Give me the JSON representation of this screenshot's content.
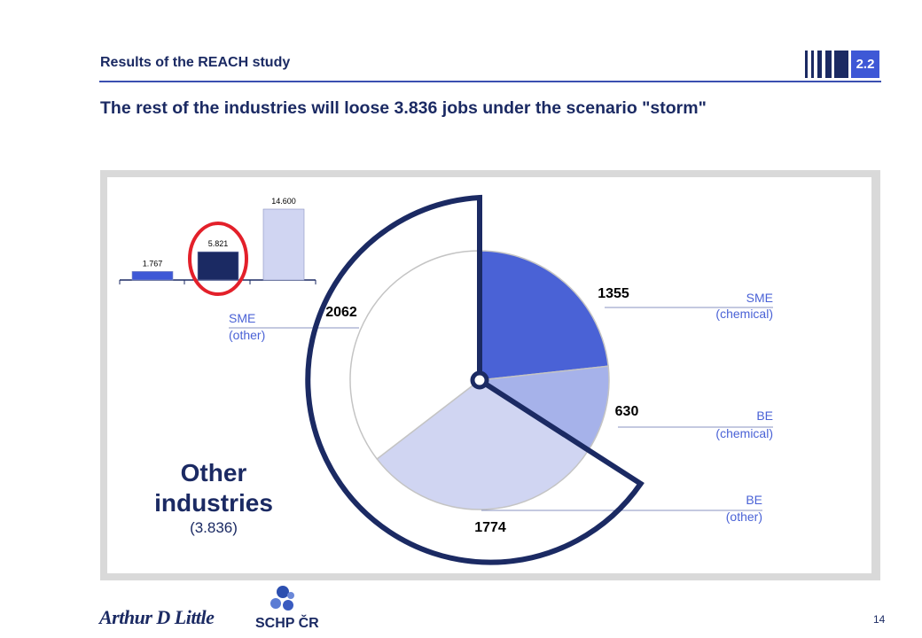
{
  "header": {
    "section_title": "Results of the REACH study",
    "section_number": "2.2",
    "main_title": "The rest of the industries will loose 3.836 jobs under the scenario \"storm\""
  },
  "chart_data": [
    {
      "type": "bar",
      "categories": [
        "",
        "",
        ""
      ],
      "values": [
        1767,
        5821,
        14600
      ],
      "value_labels": [
        "1.767",
        "5.821",
        "14.600"
      ],
      "highlighted_index": 1,
      "colors": [
        "#3e58d6",
        "#1b2a63",
        "#d0d5f2"
      ]
    },
    {
      "type": "pie",
      "slices": [
        {
          "label_line1": "SME",
          "label_line2": "(chemical)",
          "value": 1355,
          "value_label": "1355",
          "color": "#4a62d6"
        },
        {
          "label_line1": "BE",
          "label_line2": "(chemical)",
          "value": 630,
          "value_label": "630",
          "color": "#a6b2ea"
        },
        {
          "label_line1": "BE",
          "label_line2": "(other)",
          "value": 1774,
          "value_label": "1774",
          "color": "#d0d5f2"
        },
        {
          "label_line1": "SME",
          "label_line2": "(other)",
          "value": 2062,
          "value_label": "2062",
          "color": "#ffffff"
        }
      ],
      "callout": {
        "line1": "Other",
        "line2": "industries",
        "value": "(3.836)"
      }
    }
  ],
  "footer": {
    "logo_text": "Arthur D Little",
    "partner_logo_text": "SCHP ČR",
    "page_number": "14"
  },
  "colors": {
    "navy": "#1b2a63",
    "blue": "#3e58d6",
    "highlight_circle": "#e3202a"
  }
}
